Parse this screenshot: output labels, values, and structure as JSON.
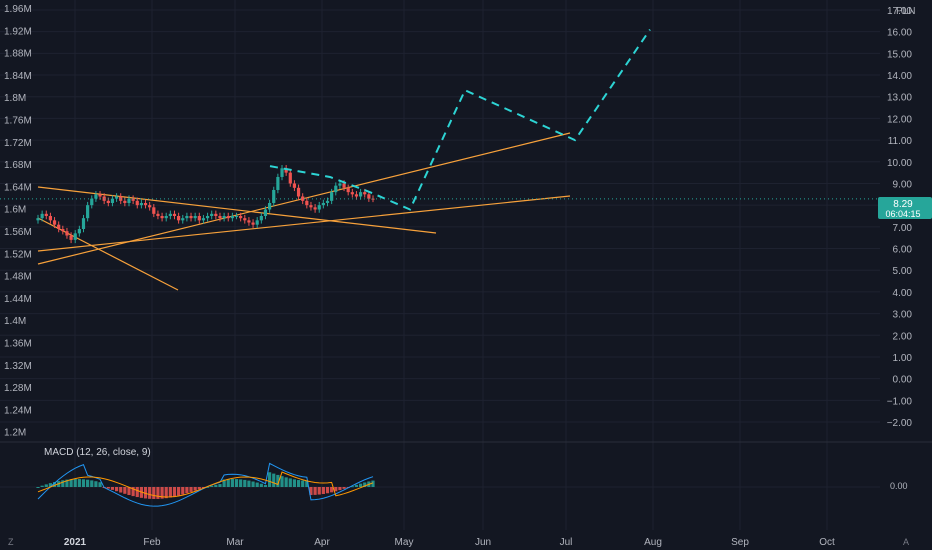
{
  "colors": {
    "background": "#131722",
    "grid": "#1e2230",
    "text": "#b2b5be",
    "up": "#26a69a",
    "down": "#ef5350",
    "trendline": "#f7a13b",
    "projection": "#2dd4d4",
    "macd_line": "#2196f3",
    "signal_line": "#ff9800",
    "price_tag": "#26a69a"
  },
  "header": {
    "currency": "PLN",
    "current_price": "8.29",
    "countdown": "06:04:15"
  },
  "macd": {
    "label": "MACD (12, 26, close, 9)",
    "zero_label": "0.00"
  },
  "footer": {
    "left_icon": "Z",
    "right_icon": "A"
  },
  "chart_data": {
    "type": "candlestick",
    "left_axis_ticks": [
      "1.96M",
      "1.92M",
      "1.88M",
      "1.84M",
      "1.8M",
      "1.76M",
      "1.72M",
      "1.68M",
      "1.64M",
      "1.6M",
      "1.56M",
      "1.52M",
      "1.48M",
      "1.44M",
      "1.4M",
      "1.36M",
      "1.32M",
      "1.28M",
      "1.24M",
      "1.2M"
    ],
    "right_axis_ticks": [
      "17.00",
      "16.00",
      "15.00",
      "14.00",
      "13.00",
      "12.00",
      "11.00",
      "10.00",
      "9.00",
      "8.00",
      "7.00",
      "6.00",
      "5.00",
      "4.00",
      "3.00",
      "2.00",
      "1.00",
      "0.00",
      "−1.00",
      "−2.00"
    ],
    "x_ticks": [
      "2021",
      "Feb",
      "Mar",
      "Apr",
      "May",
      "Jun",
      "Jul",
      "Aug",
      "Sep",
      "Oct"
    ],
    "price_range": [
      -2.0,
      17.0
    ],
    "last_price": 8.29,
    "closes": [
      7.4,
      7.6,
      7.5,
      7.3,
      7.1,
      6.9,
      6.8,
      6.6,
      6.4,
      6.7,
      6.9,
      7.4,
      8.0,
      8.3,
      8.5,
      8.4,
      8.2,
      8.1,
      8.3,
      8.4,
      8.2,
      8.1,
      8.3,
      8.2,
      8.0,
      8.1,
      8.0,
      7.9,
      7.6,
      7.5,
      7.4,
      7.5,
      7.6,
      7.5,
      7.3,
      7.4,
      7.5,
      7.4,
      7.5,
      7.3,
      7.4,
      7.5,
      7.6,
      7.5,
      7.4,
      7.5,
      7.4,
      7.5,
      7.5,
      7.4,
      7.3,
      7.2,
      7.1,
      7.3,
      7.5,
      7.8,
      8.1,
      8.7,
      9.3,
      9.7,
      9.5,
      9.0,
      8.8,
      8.4,
      8.2,
      8.0,
      7.9,
      7.8,
      8.0,
      8.1,
      8.2,
      8.6,
      8.9,
      9.0,
      8.8,
      8.6,
      8.5,
      8.4,
      8.6,
      8.5,
      8.3,
      8.29
    ],
    "trendlines": [
      {
        "from": [
          "Dec",
          "8.8"
        ],
        "to": [
          "Apr",
          "6.1"
        ]
      },
      {
        "from": [
          "Dec",
          "7.6"
        ],
        "to": [
          "Jan",
          "4.3"
        ]
      },
      {
        "from": [
          "Dec",
          "6.2"
        ],
        "to": [
          "Jul",
          "11.7"
        ]
      },
      {
        "from": [
          "Dec",
          "6.9"
        ],
        "to": [
          "Jul",
          "8.6"
        ]
      }
    ],
    "projection_path": [
      [
        270,
        9.8
      ],
      [
        330,
        9.3
      ],
      [
        370,
        8.6
      ],
      [
        410,
        7.8
      ],
      [
        465,
        13.3
      ],
      [
        575,
        11.0
      ],
      [
        650,
        16.1
      ]
    ]
  }
}
